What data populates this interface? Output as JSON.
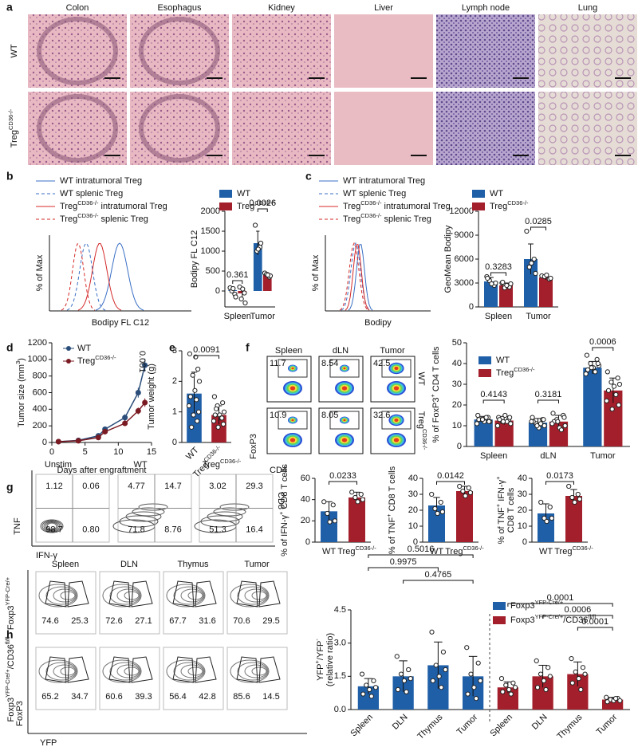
{
  "panel_letters": [
    "a",
    "b",
    "c",
    "d",
    "e",
    "f",
    "g",
    "h"
  ],
  "histology": {
    "tissues": [
      "Colon",
      "Esophagus",
      "Kidney",
      "Liver",
      "Lymph node",
      "Lung"
    ],
    "rows": [
      "WT",
      {
        "text": "Treg",
        "sup": "CD36-/-"
      }
    ]
  },
  "histograms": [
    {
      "ylabel": "% of Max",
      "xlabel": "Bodipy FL C12",
      "legend": [
        {
          "text": "WT intratumoral Treg",
          "color": "#3a6fc4",
          "dash": false
        },
        {
          "text": "WT splenic Treg",
          "color": "#3a6fc4",
          "dash": true
        },
        {
          "text": "Treg",
          "sup": "CD36-/-",
          "rest": " intratumoral Treg",
          "color": "#d42a2a",
          "dash": false
        },
        {
          "text": "Treg",
          "sup": "CD36-/-",
          "rest": "  splenic Treg",
          "color": "#d42a2a",
          "dash": true
        }
      ]
    },
    {
      "ylabel": "% of Max",
      "xlabel": "Bodipy",
      "legend": [
        {
          "text": "WT intratumoral Treg",
          "color": "#3a6fc4",
          "dash": false
        },
        {
          "text": "WT splenic Treg",
          "color": "#3a6fc4",
          "dash": true
        },
        {
          "text": "Treg",
          "sup": "CD36-/-",
          "rest": " intratumoral Treg",
          "color": "#d42a2a",
          "dash": false
        },
        {
          "text": "Treg",
          "sup": "CD36-/-",
          "rest": "  splenic Treg",
          "color": "#d42a2a",
          "dash": true
        }
      ]
    }
  ],
  "flow_f": {
    "columns": [
      "Spleen",
      "dLN",
      "Tumor"
    ],
    "rows": [
      "WT",
      {
        "text": "Treg",
        "sup": "CD36-/-"
      }
    ],
    "gates": [
      [
        "11.7",
        "8.54",
        "42.5"
      ],
      [
        "10.9",
        "8.05",
        "32.6"
      ]
    ],
    "ylabel": "FoxP3",
    "xlabel": "CD4"
  },
  "flow_g": {
    "columns": [
      "Unstim",
      "WT",
      {
        "text": "Treg",
        "sup": "CD36-/-"
      }
    ],
    "quadrants": [
      [
        "1.12",
        "0.06",
        "98.7",
        "0.80"
      ],
      [
        "4.77",
        "14.7",
        "71.8",
        "8.76"
      ],
      [
        "3.02",
        "29.3",
        "51.3",
        "16.4"
      ]
    ],
    "ylabel": "TNF",
    "xlabel": "IFN-γ",
    "right_label": "CD8"
  },
  "flow_h": {
    "columns": [
      "Spleen",
      "DLN",
      "Thymus",
      "Tumor"
    ],
    "rows": [
      {
        "text": "Foxp3",
        "sup": "YFP-Cre/+"
      },
      {
        "text": "Foxp3",
        "sup": "YFP-Cre/+",
        "rest": "/CD36",
        "sup2": "fl/fl"
      }
    ],
    "gates": [
      [
        [
          "74.6",
          "25.3"
        ],
        [
          "72.6",
          "27.1"
        ],
        [
          "67.7",
          "31.6"
        ],
        [
          "70.6",
          "29.5"
        ]
      ],
      [
        [
          "65.2",
          "34.7"
        ],
        [
          "60.6",
          "39.3"
        ],
        [
          "56.4",
          "42.8"
        ],
        [
          "85.6",
          "14.5"
        ]
      ]
    ],
    "ylabel": "FoxP3",
    "xlabel": "YFP"
  },
  "chart_data": [
    {
      "type": "bar",
      "ylabel": [
        "Bodipy FL C12"
      ],
      "categories": [
        "Spleen",
        "Tumor"
      ],
      "ylim": [
        -400,
        2000
      ],
      "yticks": [
        0,
        500,
        1000,
        1500,
        2000
      ],
      "annotations": [
        "0.361",
        "0.0026"
      ],
      "series": [
        {
          "name": "WT",
          "color": "#1f5fa8",
          "values": [
            20,
            1200
          ],
          "errors": [
            80,
            300
          ],
          "points": [
            [
              80,
              -80,
              0,
              -150,
              60
            ],
            [
              1650,
              1100,
              1000,
              1200,
              1050
            ]
          ]
        },
        {
          "name": {
            "text": "Treg",
            "sup": "CD36-/-"
          },
          "color": "#a31f2b",
          "values": [
            -60,
            400
          ],
          "errors": [
            100,
            60
          ],
          "points": [
            [
              100,
              -50,
              -200,
              -300,
              50
            ],
            [
              450,
              350,
              420,
              380,
              400
            ]
          ]
        }
      ]
    },
    {
      "type": "bar",
      "ylabel": [
        "GeoMean Bodipy"
      ],
      "categories": [
        "Spleen",
        "Tumor"
      ],
      "ylim": [
        0,
        12000
      ],
      "yticks": [
        0,
        3000,
        6000,
        9000,
        12000
      ],
      "annotations": [
        "0.3283",
        "0.0285"
      ],
      "series": [
        {
          "name": "WT",
          "color": "#1f5fa8",
          "values": [
            3200,
            6000
          ],
          "errors": [
            500,
            1900
          ],
          "points": [
            [
              3800,
              2700,
              3300,
              3000,
              2900,
              3600
            ],
            [
              9500,
              6000,
              5000,
              4200,
              5500
            ]
          ]
        },
        {
          "name": {
            "text": "Treg",
            "sup": "CD36-/-"
          },
          "color": "#a31f2b",
          "values": [
            2700,
            3700
          ],
          "errors": [
            300,
            300
          ],
          "points": [
            [
              3000,
              2500,
              2400,
              2900,
              2700,
              3100
            ],
            [
              3900,
              3500,
              3800,
              3600,
              4000
            ]
          ]
        }
      ]
    },
    {
      "type": "line",
      "ylabel": [
        {
          "text": "Tumor size (mm",
          "sup": "3",
          "rest": ")"
        }
      ],
      "xlabel": "Days after engraftment",
      "x": [
        1,
        4,
        7,
        8,
        11,
        13,
        14
      ],
      "xlim": [
        0,
        15
      ],
      "xticks": [
        0,
        5,
        10,
        15
      ],
      "ylim": [
        0,
        1200
      ],
      "yticks": [
        0,
        200,
        400,
        600,
        800,
        1000,
        1200
      ],
      "annotations": [
        "0.001"
      ],
      "series": [
        {
          "name": "WT",
          "color": "#2a4d7a",
          "values": [
            10,
            25,
            80,
            160,
            300,
            600,
            930
          ],
          "errors": [
            5,
            10,
            20,
            30,
            40,
            60,
            80
          ]
        },
        {
          "name": {
            "text": "Treg",
            "sup": "CD36-/-"
          },
          "color": "#7a1a22",
          "values": [
            10,
            20,
            60,
            130,
            230,
            380,
            480
          ],
          "errors": [
            5,
            8,
            15,
            25,
            30,
            40,
            50
          ]
        }
      ]
    },
    {
      "type": "bar",
      "ylabel": [
        "Tumor weight (g)"
      ],
      "categories": [
        "WT",
        {
          "text": "Treg",
          "sup": "CD36-/-"
        }
      ],
      "colors": [
        "#1f5fa8",
        "#a31f2b"
      ],
      "ylim": [
        0,
        3
      ],
      "yticks": [
        0,
        1,
        2,
        3
      ],
      "annotations": [
        "0.0091"
      ],
      "values": [
        1.6,
        0.9
      ],
      "errors": [
        0.7,
        0.3
      ],
      "points": [
        [
          2.9,
          2.4,
          2.2,
          2.0,
          1.7,
          1.5,
          1.4,
          1.2,
          1.0,
          0.9,
          0.7,
          0.5,
          2.8
        ],
        [
          1.5,
          1.3,
          1.2,
          1.0,
          0.9,
          0.9,
          0.8,
          0.7,
          0.6,
          0.5,
          0.8,
          1.1
        ]
      ]
    },
    {
      "type": "bar",
      "ylabel": [
        {
          "text": "% of FoxP3",
          "sup": "+",
          "rest": " CD4 T cells"
        }
      ],
      "categories": [
        "Spleen",
        "dLN",
        "Tumor"
      ],
      "ylim": [
        0,
        50
      ],
      "yticks": [
        0,
        10,
        20,
        30,
        40,
        50
      ],
      "annotations": [
        "0.4143",
        "0.3181",
        "0.0006"
      ],
      "series": [
        {
          "name": "WT",
          "color": "#1f5fa8",
          "values": [
            13,
            11.5,
            38
          ],
          "errors": [
            1.5,
            2,
            3
          ],
          "points": [
            [
              15,
              14,
              13,
              12,
              12,
              13,
              14,
              11,
              12,
              13
            ],
            [
              14,
              13,
              11,
              10,
              9,
              12,
              11,
              12,
              13,
              10
            ],
            [
              44,
              42,
              40,
              39,
              38,
              37,
              36,
              35,
              40,
              38
            ]
          ]
        },
        {
          "name": {
            "text": "Treg",
            "sup": "CD36-/-"
          },
          "color": "#a31f2b",
          "values": [
            12.5,
            12,
            27
          ],
          "errors": [
            2,
            3,
            6
          ],
          "points": [
            [
              14,
              13,
              12,
              11,
              15,
              13,
              12,
              10,
              14,
              12
            ],
            [
              16,
              15,
              13,
              10,
              9,
              12,
              8,
              11,
              14,
              12
            ],
            [
              36,
              33,
              31,
              30,
              29,
              27,
              25,
              22,
              20,
              18
            ]
          ]
        }
      ]
    },
    {
      "type": "bar",
      "ylabel": [
        {
          "text": "% of IFN-γ",
          "sup": "+",
          "rest": " CD8 T cells"
        }
      ],
      "categories": [
        "WT",
        {
          "text": "Treg",
          "sup": "CD36-/-"
        }
      ],
      "colors": [
        "#1f5fa8",
        "#a31f2b"
      ],
      "ylim": [
        0,
        60
      ],
      "yticks": [
        0,
        20,
        40,
        60
      ],
      "annotations": [
        "0.0233"
      ],
      "values": [
        29,
        42
      ],
      "errors": [
        9,
        5
      ],
      "points": [
        [
          38,
          35,
          27,
          20,
          19
        ],
        [
          47,
          45,
          42,
          40,
          38
        ]
      ]
    },
    {
      "type": "bar",
      "ylabel": [
        {
          "text": "% of TNF",
          "sup": "+",
          "rest": " CD8 T cells"
        }
      ],
      "categories": [
        "WT",
        {
          "text": "Treg",
          "sup": "CD36-/-"
        }
      ],
      "colors": [
        "#1f5fa8",
        "#a31f2b"
      ],
      "ylim": [
        0,
        40
      ],
      "yticks": [
        0,
        10,
        20,
        30,
        40
      ],
      "annotations": [
        "0.0142"
      ],
      "values": [
        23,
        32
      ],
      "errors": [
        5,
        3
      ],
      "points": [
        [
          30,
          25,
          21,
          19,
          18
        ],
        [
          35,
          34,
          32,
          31,
          29
        ]
      ]
    },
    {
      "type": "bar",
      "ylabel": [
        {
          "text": "% of TNF",
          "sup": "+",
          "rest": " IFN-γ",
          "sup2": "+"
        },
        "CD8 T cells"
      ],
      "categories": [
        "WT",
        {
          "text": "Treg",
          "sup": "CD36-/-"
        }
      ],
      "colors": [
        "#1f5fa8",
        "#a31f2b"
      ],
      "ylim": [
        0,
        40
      ],
      "yticks": [
        0,
        10,
        20,
        30,
        40
      ],
      "annotations": [
        "0.0173"
      ],
      "values": [
        18,
        29
      ],
      "errors": [
        6,
        4
      ],
      "points": [
        [
          25,
          22,
          15,
          15,
          13
        ],
        [
          35,
          30,
          28,
          27,
          25
        ]
      ]
    },
    {
      "type": "bar",
      "ylabel": [
        {
          "text": "YFP",
          "sup": "+",
          "rest": "/YFP",
          "sup2": "-",
          " ": ""
        },
        "(relative ratio)"
      ],
      "categories": [
        "Spleen",
        "DLN",
        "Thymus",
        "Tumor",
        "Spleen",
        "DLN",
        "Thymus",
        "Tumor"
      ],
      "ylim": [
        0,
        4.5
      ],
      "yticks": [
        {
          "value": 0,
          "label": "0.0"
        },
        {
          "value": 1.5,
          "label": "1.5"
        },
        {
          "value": 3,
          "label": "3.0"
        },
        {
          "value": 4.5,
          "label": "4.5"
        }
      ],
      "annotations": [
        "0.5016",
        "0.9975",
        "0.4765",
        "0.0001",
        "0.0006",
        "0.0001"
      ],
      "series": [
        {
          "name": {
            "text": "Foxp3",
            "sup": "YFP-Cre/+"
          },
          "color": "#1f5fa8",
          "values": [
            1.05,
            1.5,
            2.0,
            1.5,
            null,
            null,
            null,
            null
          ],
          "errors": [
            0.35,
            0.7,
            1.05,
            0.9,
            null,
            null,
            null,
            null
          ],
          "points": [
            [
              1.6,
              1.3,
              1.1,
              1.0,
              0.9,
              0.7,
              0.6
            ],
            [
              2.4,
              1.8,
              1.6,
              1.4,
              1.3,
              0.9,
              0.8
            ],
            [
              3.5,
              2.6,
              2.0,
              1.8,
              1.5,
              1.3,
              1.0
            ],
            [
              2.8,
              2.1,
              1.6,
              1.3,
              1.0,
              0.7,
              0.5
            ],
            null,
            null,
            null,
            null
          ]
        },
        {
          "name": {
            "text": "Foxp3",
            "sup": "YFP-Cre/+",
            "rest": "/CD36",
            "sup2": "fl/fl"
          },
          "color": "#a31f2b",
          "values": [
            null,
            null,
            null,
            null,
            1.0,
            1.5,
            1.6,
            0.45
          ],
          "errors": [
            null,
            null,
            null,
            null,
            0.25,
            0.5,
            0.55,
            0.1
          ],
          "points": [
            null,
            null,
            null,
            null,
            [
              1.4,
              1.2,
              1.1,
              1.0,
              0.9,
              0.8,
              0.7
            ],
            [
              2.2,
              1.9,
              1.6,
              1.5,
              1.3,
              1.0,
              0.9
            ],
            [
              2.3,
              1.9,
              1.7,
              1.6,
              1.4,
              1.2,
              0.9
            ],
            [
              0.55,
              0.5,
              0.45,
              0.4,
              0.4,
              0.35,
              0.5
            ]
          ]
        }
      ]
    }
  ]
}
